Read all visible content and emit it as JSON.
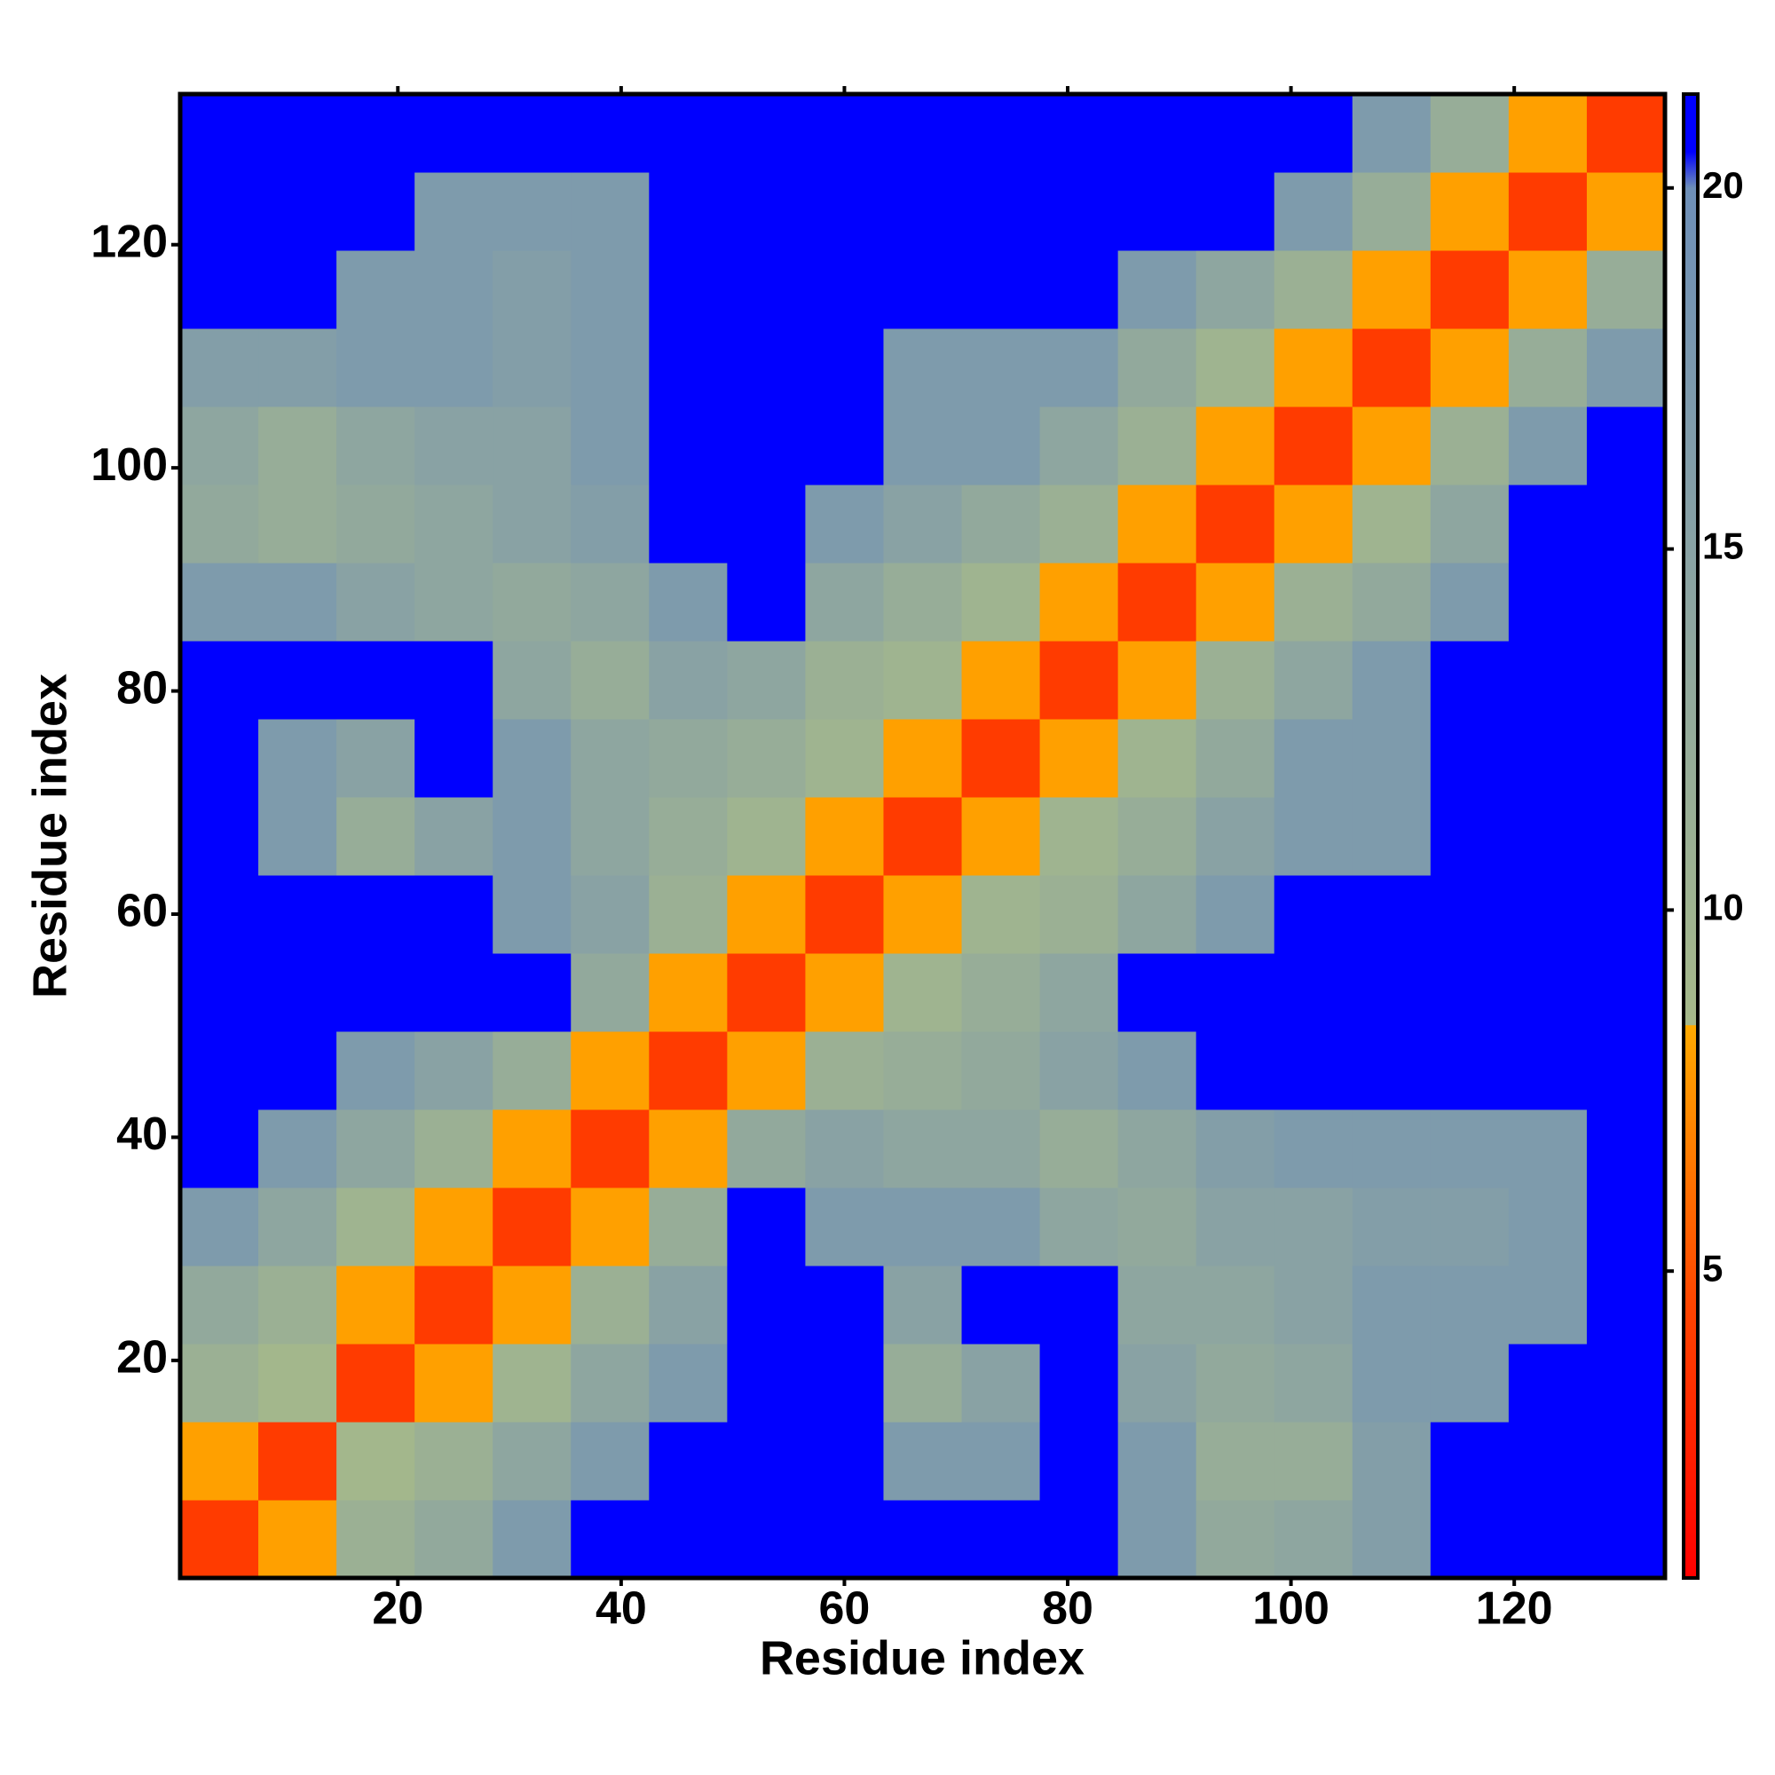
{
  "chart_data": {
    "type": "heatmap",
    "x_label": "Residue index",
    "y_label": "Residue index",
    "x_bins": [
      0.5,
      7.5,
      14.5,
      21.5,
      28.5,
      35.5,
      42.5,
      49.5,
      56.5,
      63.5,
      70.5,
      77.5,
      84.5,
      91.5,
      98.5,
      105.5,
      112.5,
      119.5,
      126.5,
      133.5
    ],
    "y_bins": [
      0.5,
      7.5,
      14.5,
      21.5,
      28.5,
      35.5,
      42.5,
      49.5,
      56.5,
      63.5,
      70.5,
      77.5,
      84.5,
      91.5,
      98.5,
      105.5,
      112.5,
      119.5,
      126.5,
      133.5
    ],
    "values": [
      [
        4,
        8,
        11,
        13,
        17,
        22,
        22,
        22,
        22,
        22,
        22,
        22,
        17,
        13,
        14,
        16,
        22,
        22,
        22
      ],
      [
        8,
        4,
        9,
        11,
        14,
        17,
        22,
        22,
        22,
        17,
        17,
        22,
        17,
        12,
        12,
        16,
        22,
        22,
        22
      ],
      [
        11,
        9,
        4,
        8,
        10,
        14,
        17,
        22,
        22,
        12,
        15,
        22,
        15,
        13,
        14,
        17,
        17,
        22,
        22
      ],
      [
        13,
        11,
        8,
        4,
        8,
        11,
        15,
        22,
        22,
        15,
        22,
        22,
        14,
        14,
        15,
        17,
        17,
        17,
        22
      ],
      [
        17,
        14,
        10,
        8,
        4,
        8,
        12,
        22,
        17,
        17,
        17,
        14,
        13,
        15,
        15,
        16,
        16,
        17,
        22
      ],
      [
        22,
        17,
        14,
        11,
        8,
        4,
        8,
        13,
        15,
        14,
        14,
        12,
        14,
        16,
        17,
        17,
        17,
        17,
        22
      ],
      [
        22,
        22,
        17,
        15,
        12,
        8,
        4,
        8,
        11,
        12,
        13,
        15,
        17,
        22,
        22,
        22,
        22,
        22,
        22
      ],
      [
        22,
        22,
        22,
        22,
        22,
        13,
        8,
        4,
        8,
        10,
        12,
        14,
        22,
        22,
        22,
        22,
        22,
        22,
        22
      ],
      [
        22,
        22,
        22,
        22,
        17,
        15,
        11,
        8,
        4,
        8,
        10,
        11,
        14,
        17,
        22,
        22,
        22,
        22,
        22
      ],
      [
        22,
        17,
        12,
        15,
        17,
        14,
        12,
        10,
        8,
        4,
        8,
        10,
        12,
        15,
        17,
        17,
        22,
        22,
        22
      ],
      [
        22,
        17,
        15,
        22,
        17,
        14,
        13,
        12,
        10,
        8,
        4,
        8,
        10,
        13,
        17,
        17,
        22,
        22,
        22
      ],
      [
        22,
        22,
        22,
        22,
        14,
        12,
        15,
        14,
        11,
        10,
        8,
        4,
        8,
        11,
        14,
        17,
        22,
        22,
        22
      ],
      [
        17,
        17,
        15,
        14,
        13,
        14,
        17,
        22,
        14,
        12,
        10,
        8,
        4,
        8,
        11,
        13,
        17,
        22,
        22
      ],
      [
        13,
        12,
        13,
        14,
        15,
        16,
        22,
        22,
        17,
        15,
        13,
        11,
        8,
        4,
        8,
        10,
        14,
        22,
        22
      ],
      [
        14,
        12,
        14,
        15,
        15,
        17,
        22,
        22,
        22,
        17,
        17,
        14,
        11,
        8,
        4,
        8,
        11,
        17,
        22
      ],
      [
        16,
        16,
        17,
        17,
        16,
        17,
        22,
        22,
        22,
        17,
        17,
        17,
        13,
        10,
        8,
        4,
        8,
        12,
        17
      ],
      [
        22,
        22,
        17,
        17,
        16,
        17,
        22,
        22,
        22,
        22,
        22,
        22,
        17,
        14,
        11,
        8,
        4,
        8,
        12
      ],
      [
        22,
        22,
        22,
        17,
        17,
        17,
        22,
        22,
        22,
        22,
        22,
        22,
        22,
        22,
        17,
        12,
        8,
        4,
        8
      ],
      [
        22,
        22,
        22,
        22,
        22,
        22,
        22,
        22,
        22,
        22,
        22,
        22,
        22,
        22,
        22,
        17,
        12,
        8,
        4
      ]
    ],
    "xlim": [
      0.5,
      133.5
    ],
    "ylim": [
      0.5,
      133.5
    ],
    "xticks": [
      20,
      40,
      60,
      80,
      100,
      120
    ],
    "yticks": [
      20,
      40,
      60,
      80,
      100,
      120
    ],
    "clim": [
      0.75,
      21.3
    ],
    "colorbar_ticks": [
      5,
      10,
      15,
      20
    ],
    "colorscale": [
      [
        0.75,
        "#ff0000"
      ],
      [
        4.5,
        "#ff4400"
      ],
      [
        8.4,
        "#ffaa00"
      ],
      [
        8.41,
        "#a6b98a"
      ],
      [
        14,
        "#8ea6a0"
      ],
      [
        20,
        "#6e8fb8"
      ],
      [
        20.5,
        "#0000ff"
      ],
      [
        21.3,
        "#0000ff"
      ]
    ]
  }
}
